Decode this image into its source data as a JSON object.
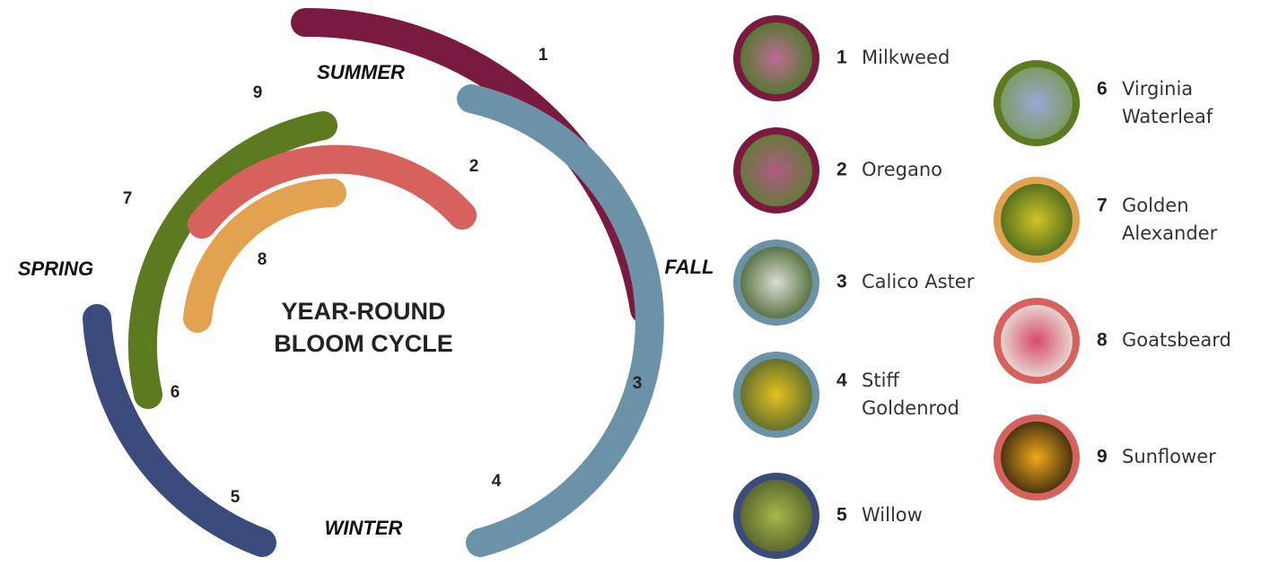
{
  "title": [
    "YEAR-ROUND",
    "BLOOM CYCLE"
  ],
  "seasons": {
    "summer": "SUMMER",
    "fall": "FALL",
    "winter": "WINTER",
    "spring": "SPRING"
  },
  "plants": [
    {
      "number": "1",
      "name": [
        "Milkweed"
      ]
    },
    {
      "number": "2",
      "name": [
        "Oregano"
      ]
    },
    {
      "number": "3",
      "name": [
        "Calico Aster"
      ]
    },
    {
      "number": "4",
      "name": [
        "Stiff",
        "Goldenrod"
      ]
    },
    {
      "number": "5",
      "name": [
        "Willow"
      ]
    },
    {
      "number": "6",
      "name": [
        "Virginia",
        "Waterleaf"
      ]
    },
    {
      "number": "7",
      "name": [
        "Golden",
        "Alexander"
      ]
    },
    {
      "number": "8",
      "name": [
        "Goatsbeard"
      ]
    },
    {
      "number": "9",
      "name": [
        "Sunflower"
      ]
    }
  ]
}
